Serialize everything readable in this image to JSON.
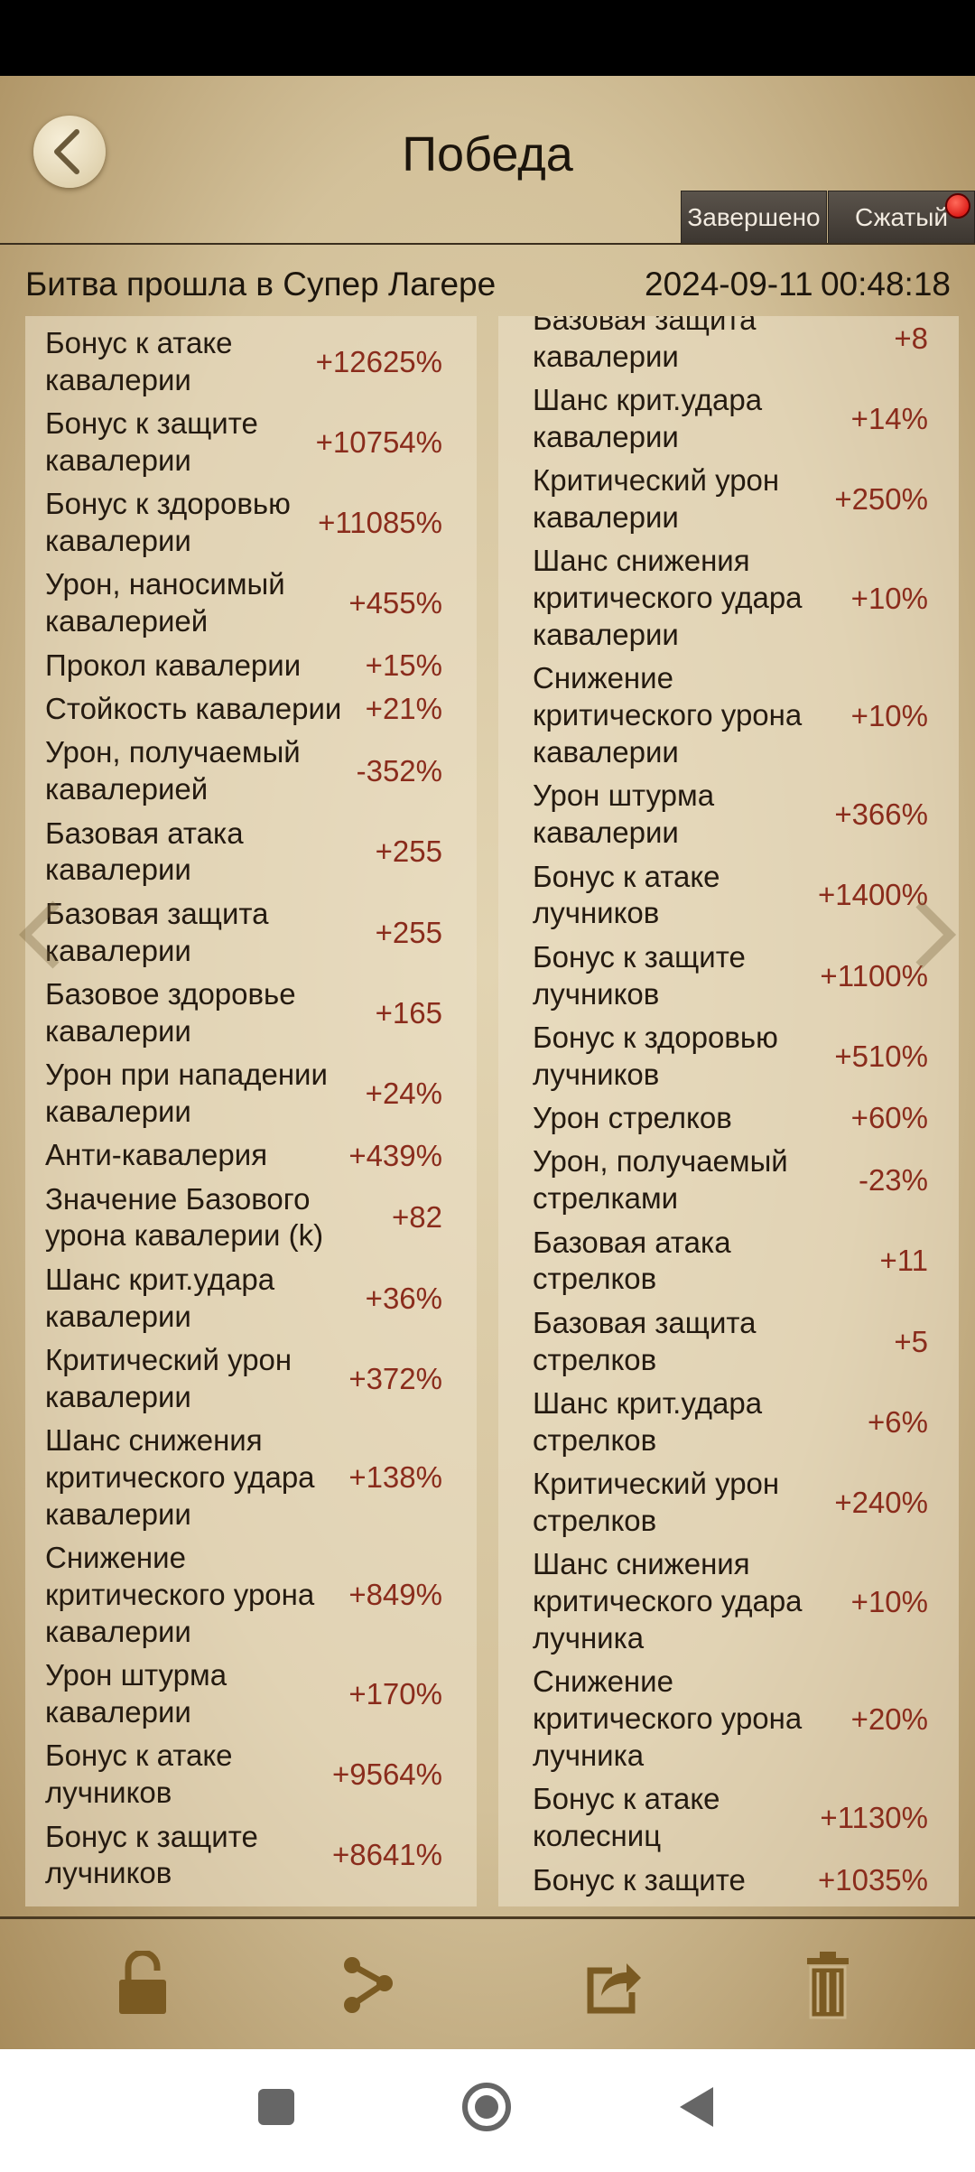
{
  "header": {
    "title": "Победа",
    "tabs": [
      "Завершено",
      "Сжатый"
    ],
    "battle": "Битва прошла в Супер Лагере",
    "date": "2024-09-11",
    "time": "00:48:18"
  },
  "left": [
    {
      "label": [
        "Бонус к атаке",
        "кавалерии"
      ],
      "value": "+12625%"
    },
    {
      "label": [
        "Бонус к защите",
        "кавалерии"
      ],
      "value": "+10754%"
    },
    {
      "label": [
        "Бонус к здоровью",
        "кавалерии"
      ],
      "value": "+11085%"
    },
    {
      "label": [
        "Урон, наносимый",
        "кавалерией"
      ],
      "value": "+455%"
    },
    {
      "label": [
        "Прокол кавалерии"
      ],
      "value": "+15%"
    },
    {
      "label": [
        "Стойкость кавалерии"
      ],
      "value": "+21%"
    },
    {
      "label": [
        "Урон, получаемый",
        "кавалерией"
      ],
      "value": "-352%"
    },
    {
      "label": [
        "Базовая атака",
        "кавалерии"
      ],
      "value": "+255"
    },
    {
      "label": [
        "Базовая защита",
        "кавалерии"
      ],
      "value": "+255"
    },
    {
      "label": [
        "Базовое здоровье",
        "кавалерии"
      ],
      "value": "+165"
    },
    {
      "label": [
        "Урон при нападении",
        "кавалерии"
      ],
      "value": "+24%"
    },
    {
      "label": [
        "Анти-кавалерия"
      ],
      "value": "+439%"
    },
    {
      "label": [
        "Значение Базового",
        "урона кавалерии (k)"
      ],
      "value": "+82"
    },
    {
      "label": [
        "Шанс крит.удара",
        "кавалерии"
      ],
      "value": "+36%"
    },
    {
      "label": [
        "Критический урон",
        "кавалерии"
      ],
      "value": "+372%"
    },
    {
      "label": [
        "Шанс снижения",
        "критического удара",
        "кавалерии"
      ],
      "value": "+138%"
    },
    {
      "label": [
        "Снижение",
        "критического урона",
        "кавалерии"
      ],
      "value": "+849%"
    },
    {
      "label": [
        "Урон штурма",
        "кавалерии"
      ],
      "value": "+170%"
    },
    {
      "label": [
        "Бонус к атаке",
        "лучников"
      ],
      "value": "+9564%"
    },
    {
      "label": [
        "Бонус к защите",
        "лучников"
      ],
      "value": "+8641%"
    }
  ],
  "right": [
    {
      "label": [
        "Базовая защита",
        "кавалерии"
      ],
      "value": "+8"
    },
    {
      "label": [
        "Шанс крит.удара",
        "кавалерии"
      ],
      "value": "+14%"
    },
    {
      "label": [
        "Критический урон",
        "кавалерии"
      ],
      "value": "+250%"
    },
    {
      "label": [
        "Шанс снижения",
        "критического удара",
        "кавалерии"
      ],
      "value": "+10%"
    },
    {
      "label": [
        "Снижение",
        "критического урона",
        "кавалерии"
      ],
      "value": "+10%"
    },
    {
      "label": [
        "Урон штурма",
        "кавалерии"
      ],
      "value": "+366%"
    },
    {
      "label": [
        "Бонус к атаке",
        "лучников"
      ],
      "value": "+1400%"
    },
    {
      "label": [
        "Бонус к защите",
        "лучников"
      ],
      "value": "+1100%"
    },
    {
      "label": [
        "Бонус к здоровью",
        "лучников"
      ],
      "value": "+510%"
    },
    {
      "label": [
        "Урон стрелков"
      ],
      "value": "+60%"
    },
    {
      "label": [
        "Урон, получаемый",
        "стрелками"
      ],
      "value": "-23%"
    },
    {
      "label": [
        "Базовая атака",
        "стрелков"
      ],
      "value": "+11"
    },
    {
      "label": [
        "Базовая защита",
        "стрелков"
      ],
      "value": "+5"
    },
    {
      "label": [
        "Шанс крит.удара",
        "стрелков"
      ],
      "value": "+6%"
    },
    {
      "label": [
        "Критический урон",
        "стрелков"
      ],
      "value": "+240%"
    },
    {
      "label": [
        "Шанс снижения",
        "критического удара",
        "лучника"
      ],
      "value": "+10%"
    },
    {
      "label": [
        "Снижение",
        "критического урона",
        "лучника"
      ],
      "value": "+20%"
    },
    {
      "label": [
        "Бонус к атаке",
        "колесниц"
      ],
      "value": "+1130%"
    },
    {
      "label": [
        "Бонус к защите"
      ],
      "value": "+1035%"
    }
  ]
}
